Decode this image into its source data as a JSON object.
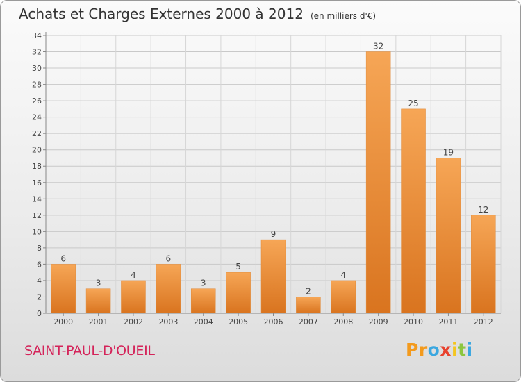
{
  "header": {
    "title": "Achats et Charges Externes 2000 à 2012",
    "unit": "(en milliers d'€)"
  },
  "footer": {
    "commune": "SAINT-PAUL-D'OUEIL",
    "brand": "Proxiti"
  },
  "colors": {
    "bar_light": "#f6a656",
    "bar_dark": "#d9741f",
    "commune_text": "#d4245a"
  },
  "chart_data": {
    "type": "bar",
    "title": "Achats et Charges Externes 2000 à 2012",
    "subtitle": "(en milliers d'€)",
    "categories": [
      "2000",
      "2001",
      "2002",
      "2003",
      "2004",
      "2005",
      "2006",
      "2007",
      "2008",
      "2009",
      "2010",
      "2011",
      "2012"
    ],
    "values": [
      6,
      3,
      4,
      6,
      3,
      5,
      9,
      2,
      4,
      32,
      25,
      19,
      12
    ],
    "ylim": [
      0,
      34
    ],
    "yticks": [
      0,
      2,
      4,
      6,
      8,
      10,
      12,
      14,
      16,
      18,
      20,
      22,
      24,
      26,
      28,
      30,
      32,
      34
    ],
    "grid": true,
    "xlabel": "",
    "ylabel": ""
  }
}
